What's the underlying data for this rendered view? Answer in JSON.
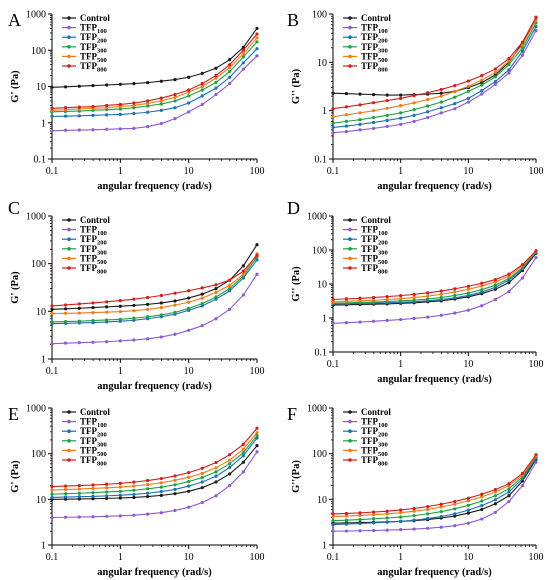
{
  "colors": {
    "Control": "#1a1a1a",
    "TFP100": "#8e5bd0",
    "TFP200": "#1f6fb3",
    "TFP300": "#21a040",
    "TFP500": "#f07b1a",
    "TFP800": "#d11e1e"
  },
  "chart_data": [
    {
      "type": "line",
      "panel": "A",
      "xlabel": "angular frequency (rad/s)",
      "ylabel": "G' (Pa)",
      "xscale": "log",
      "yscale": "log",
      "xlim": [
        0.1,
        100
      ],
      "ylim": [
        0.1,
        1000
      ],
      "xticks": [
        "0.1",
        "1",
        "10",
        "100"
      ],
      "yticks": [
        "0.1",
        "1",
        "10",
        "100",
        "1000"
      ],
      "legend_position": "top-left",
      "x": [
        0.1,
        0.158,
        0.251,
        0.398,
        0.631,
        1,
        1.58,
        2.51,
        3.98,
        6.31,
        10,
        15.8,
        25.1,
        39.8,
        63.1,
        100
      ],
      "series": [
        {
          "name": "Control",
          "sub": "",
          "color_key": "Control",
          "values": [
            9.5,
            9.8,
            10.2,
            10.6,
            11,
            11.5,
            12,
            12.8,
            14,
            15.5,
            18,
            23,
            32,
            55,
            120,
            400
          ]
        },
        {
          "name": "TFP",
          "sub": "100",
          "color_key": "TFP100",
          "values": [
            0.6,
            0.62,
            0.63,
            0.64,
            0.66,
            0.68,
            0.7,
            0.78,
            0.95,
            1.3,
            2,
            3.2,
            6,
            12,
            30,
            70
          ]
        },
        {
          "name": "TFP",
          "sub": "200",
          "color_key": "TFP200",
          "values": [
            1.5,
            1.52,
            1.55,
            1.6,
            1.65,
            1.7,
            1.8,
            1.95,
            2.2,
            2.6,
            3.5,
            5.5,
            9,
            18,
            45,
            110
          ]
        },
        {
          "name": "TFP",
          "sub": "300",
          "color_key": "TFP300",
          "values": [
            2,
            2.05,
            2.1,
            2.2,
            2.3,
            2.4,
            2.6,
            2.9,
            3.3,
            4,
            5.5,
            8,
            13,
            26,
            65,
            170
          ]
        },
        {
          "name": "TFP",
          "sub": "500",
          "color_key": "TFP500",
          "values": [
            2.2,
            2.3,
            2.4,
            2.5,
            2.6,
            2.8,
            3,
            3.4,
            4,
            5,
            7,
            10,
            17,
            33,
            80,
            220
          ]
        },
        {
          "name": "TFP",
          "sub": "800",
          "color_key": "TFP800",
          "values": [
            2.5,
            2.6,
            2.7,
            2.8,
            3,
            3.2,
            3.5,
            4,
            4.8,
            6,
            8,
            12,
            20,
            40,
            100,
            280
          ]
        }
      ]
    },
    {
      "type": "line",
      "panel": "B",
      "xlabel": "angular frequency (rad/s)",
      "ylabel": "G'' (Pa)",
      "xscale": "log",
      "yscale": "log",
      "xlim": [
        0.1,
        100
      ],
      "ylim": [
        0.1,
        100
      ],
      "xticks": [
        "0.1",
        "1",
        "10",
        "100"
      ],
      "yticks": [
        "0.1",
        "1",
        "10",
        "100"
      ],
      "legend_position": "top-left",
      "x": [
        0.1,
        0.158,
        0.251,
        0.398,
        0.631,
        1,
        1.58,
        2.51,
        3.98,
        6.31,
        10,
        15.8,
        25.1,
        39.8,
        63.1,
        100
      ],
      "series": [
        {
          "name": "Control",
          "sub": "",
          "color_key": "Control",
          "values": [
            2.3,
            2.25,
            2.2,
            2.15,
            2.1,
            2.1,
            2.15,
            2.2,
            2.3,
            2.5,
            3,
            3.8,
            5.5,
            10,
            25,
            85
          ]
        },
        {
          "name": "TFP",
          "sub": "100",
          "color_key": "TFP100",
          "values": [
            0.35,
            0.37,
            0.4,
            0.43,
            0.47,
            0.52,
            0.6,
            0.72,
            0.9,
            1.1,
            1.5,
            2.2,
            3.5,
            6,
            14,
            45
          ]
        },
        {
          "name": "TFP",
          "sub": "200",
          "color_key": "TFP200",
          "values": [
            0.45,
            0.48,
            0.52,
            0.57,
            0.63,
            0.7,
            0.8,
            0.95,
            1.15,
            1.4,
            1.8,
            2.6,
            4,
            7,
            17,
            55
          ]
        },
        {
          "name": "TFP",
          "sub": "300",
          "color_key": "TFP300",
          "values": [
            0.55,
            0.6,
            0.65,
            0.72,
            0.8,
            0.9,
            1.05,
            1.25,
            1.5,
            1.9,
            2.5,
            3.4,
            5,
            9,
            20,
            65
          ]
        },
        {
          "name": "TFP",
          "sub": "500",
          "color_key": "TFP500",
          "values": [
            0.75,
            0.82,
            0.9,
            1,
            1.12,
            1.27,
            1.45,
            1.7,
            2,
            2.5,
            3.2,
            4.3,
            6.2,
            10.5,
            23,
            75
          ]
        },
        {
          "name": "TFP",
          "sub": "800",
          "color_key": "TFP800",
          "values": [
            1.1,
            1.2,
            1.32,
            1.46,
            1.62,
            1.8,
            2.05,
            2.35,
            2.75,
            3.3,
            4.1,
            5.3,
            7.3,
            12,
            26,
            85
          ]
        }
      ]
    },
    {
      "type": "line",
      "panel": "C",
      "xlabel": "angular frequency (rad/s)",
      "ylabel": "G' (Pa)",
      "xscale": "log",
      "yscale": "log",
      "xlim": [
        0.1,
        100
      ],
      "ylim": [
        1,
        1000
      ],
      "xticks": [
        "0.1",
        "1",
        "10",
        "100"
      ],
      "yticks": [
        "1",
        "10",
        "100",
        "1000"
      ],
      "legend_position": "top-left",
      "x": [
        0.1,
        0.158,
        0.251,
        0.398,
        0.631,
        1,
        1.58,
        2.51,
        3.98,
        6.31,
        10,
        15.8,
        25.1,
        39.8,
        63.1,
        100
      ],
      "series": [
        {
          "name": "Control",
          "sub": "",
          "color_key": "Control",
          "values": [
            11,
            11.3,
            11.6,
            12,
            12.4,
            12.8,
            13.3,
            14,
            15,
            16.5,
            19,
            23,
            30,
            45,
            90,
            250
          ]
        },
        {
          "name": "TFP",
          "sub": "100",
          "color_key": "TFP100",
          "values": [
            2.1,
            2.15,
            2.2,
            2.25,
            2.3,
            2.4,
            2.5,
            2.65,
            2.9,
            3.3,
            4,
            5,
            7,
            11,
            22,
            60
          ]
        },
        {
          "name": "TFP",
          "sub": "200",
          "color_key": "TFP200",
          "values": [
            5.5,
            5.6,
            5.7,
            5.8,
            6,
            6.2,
            6.5,
            7,
            7.7,
            8.7,
            10.5,
            13,
            18,
            27,
            50,
            120
          ]
        },
        {
          "name": "TFP",
          "sub": "300",
          "color_key": "TFP300",
          "values": [
            6,
            6.1,
            6.2,
            6.4,
            6.6,
            6.8,
            7.2,
            7.7,
            8.4,
            9.5,
            11.5,
            14.5,
            20,
            30,
            55,
            140
          ]
        },
        {
          "name": "TFP",
          "sub": "500",
          "color_key": "TFP500",
          "values": [
            9,
            9.1,
            9.2,
            9.4,
            9.6,
            9.9,
            10.3,
            11,
            12,
            13.5,
            15.5,
            19,
            25,
            35,
            60,
            160
          ]
        },
        {
          "name": "TFP",
          "sub": "800",
          "color_key": "TFP800",
          "values": [
            13,
            13.6,
            14.3,
            15,
            15.8,
            16.8,
            18,
            19.5,
            21.5,
            24,
            27,
            31,
            36,
            45,
            70,
            150
          ]
        }
      ]
    },
    {
      "type": "line",
      "panel": "D",
      "xlabel": "angular frequency (rad/s)",
      "ylabel": "G'' (Pa)",
      "xscale": "log",
      "yscale": "log",
      "xlim": [
        0.1,
        100
      ],
      "ylim": [
        0.1,
        1000
      ],
      "xticks": [
        "0.1",
        "1",
        "10",
        "100"
      ],
      "yticks": [
        "0.1",
        "1",
        "10",
        "100",
        "1000"
      ],
      "legend_position": "top-left",
      "x": [
        0.1,
        0.158,
        0.251,
        0.398,
        0.631,
        1,
        1.58,
        2.51,
        3.98,
        6.31,
        10,
        15.8,
        25.1,
        39.8,
        63.1,
        100
      ],
      "series": [
        {
          "name": "Control",
          "sub": "",
          "color_key": "Control",
          "values": [
            2.4,
            2.45,
            2.5,
            2.55,
            2.6,
            2.7,
            2.8,
            3,
            3.2,
            3.6,
            4.2,
            5.2,
            7,
            11,
            25,
            80
          ]
        },
        {
          "name": "TFP",
          "sub": "100",
          "color_key": "TFP100",
          "values": [
            0.7,
            0.73,
            0.76,
            0.8,
            0.85,
            0.9,
            0.97,
            1.06,
            1.2,
            1.4,
            1.7,
            2.3,
            3.5,
            6,
            15,
            60
          ]
        },
        {
          "name": "TFP",
          "sub": "200",
          "color_key": "TFP200",
          "values": [
            2.6,
            2.65,
            2.7,
            2.75,
            2.8,
            2.9,
            3,
            3.2,
            3.5,
            3.9,
            4.6,
            5.8,
            8,
            13,
            28,
            85
          ]
        },
        {
          "name": "TFP",
          "sub": "300",
          "color_key": "TFP300",
          "values": [
            2.7,
            2.78,
            2.86,
            2.95,
            3.05,
            3.2,
            3.35,
            3.6,
            4,
            4.6,
            5.4,
            6.8,
            9.3,
            14.5,
            30,
            88
          ]
        },
        {
          "name": "TFP",
          "sub": "500",
          "color_key": "TFP500",
          "values": [
            3,
            3.1,
            3.2,
            3.35,
            3.5,
            3.7,
            4,
            4.4,
            5,
            5.8,
            7,
            8.7,
            11.5,
            17,
            34,
            92
          ]
        },
        {
          "name": "TFP",
          "sub": "800",
          "color_key": "TFP800",
          "values": [
            3.5,
            3.65,
            3.8,
            4,
            4.25,
            4.55,
            4.95,
            5.5,
            6.2,
            7.2,
            8.6,
            10.5,
            13.5,
            19.5,
            37,
            95
          ]
        }
      ]
    },
    {
      "type": "line",
      "panel": "E",
      "xlabel": "angular frequency (rad/s)",
      "ylabel": "G' (Pa)",
      "xscale": "log",
      "yscale": "log",
      "xlim": [
        0.1,
        100
      ],
      "ylim": [
        1,
        1000
      ],
      "xticks": [
        "0.1",
        "1",
        "10",
        "100"
      ],
      "yticks": [
        "1",
        "10",
        "100",
        "1000"
      ],
      "legend_position": "top-left",
      "x": [
        0.1,
        0.158,
        0.251,
        0.398,
        0.631,
        1,
        1.58,
        2.51,
        3.98,
        6.31,
        10,
        15.8,
        25.1,
        39.8,
        63.1,
        100
      ],
      "series": [
        {
          "name": "Control",
          "sub": "",
          "color_key": "Control",
          "values": [
            10,
            10.1,
            10.2,
            10.3,
            10.5,
            10.7,
            11,
            11.5,
            12.2,
            13.3,
            15,
            18,
            24,
            36,
            65,
            150
          ]
        },
        {
          "name": "TFP",
          "sub": "100",
          "color_key": "TFP100",
          "values": [
            4,
            4.05,
            4.1,
            4.15,
            4.25,
            4.35,
            4.5,
            4.75,
            5.1,
            5.7,
            6.7,
            8.5,
            12,
            20,
            40,
            110
          ]
        },
        {
          "name": "TFP",
          "sub": "200",
          "color_key": "TFP200",
          "values": [
            11,
            11.2,
            11.4,
            11.6,
            11.9,
            12.3,
            12.8,
            13.6,
            14.8,
            16.5,
            19.5,
            24,
            32,
            50,
            90,
            220
          ]
        },
        {
          "name": "TFP",
          "sub": "300",
          "color_key": "TFP300",
          "values": [
            13,
            13.3,
            13.6,
            14,
            14.5,
            15,
            15.8,
            17,
            18.5,
            20.8,
            24.5,
            30,
            40,
            60,
            105,
            250
          ]
        },
        {
          "name": "TFP",
          "sub": "500",
          "color_key": "TFP500",
          "values": [
            16,
            16.4,
            16.8,
            17.3,
            17.9,
            18.6,
            19.6,
            21,
            23,
            26,
            30.5,
            37,
            49,
            72,
            125,
            290
          ]
        },
        {
          "name": "TFP",
          "sub": "800",
          "color_key": "TFP800",
          "values": [
            19,
            19.5,
            20,
            20.6,
            21.4,
            22.4,
            23.8,
            25.8,
            28.5,
            32.5,
            38.5,
            48,
            64,
            95,
            160,
            360
          ]
        }
      ]
    },
    {
      "type": "line",
      "panel": "F",
      "xlabel": "angular frequency (rad/s)",
      "ylabel": "G''(Pa)",
      "xscale": "log",
      "yscale": "log",
      "xlim": [
        0.1,
        100
      ],
      "ylim": [
        1,
        1000
      ],
      "xticks": [
        "0.1",
        "1",
        "10",
        "100"
      ],
      "yticks": [
        "1",
        "10",
        "100",
        "1000"
      ],
      "legend_position": "top-left",
      "x": [
        0.1,
        0.158,
        0.251,
        0.398,
        0.631,
        1,
        1.58,
        2.51,
        3.98,
        6.31,
        10,
        15.8,
        25.1,
        39.8,
        63.1,
        100
      ],
      "series": [
        {
          "name": "Control",
          "sub": "",
          "color_key": "Control",
          "values": [
            3,
            3.05,
            3.1,
            3.15,
            3.2,
            3.3,
            3.4,
            3.6,
            3.9,
            4.3,
            5,
            6,
            8,
            12,
            25,
            75
          ]
        },
        {
          "name": "TFP",
          "sub": "100",
          "color_key": "TFP100",
          "values": [
            2,
            2.02,
            2.05,
            2.08,
            2.12,
            2.17,
            2.23,
            2.32,
            2.45,
            2.65,
            3,
            3.7,
            5.2,
            9,
            20,
            65
          ]
        },
        {
          "name": "TFP",
          "sub": "200",
          "color_key": "TFP200",
          "values": [
            2.8,
            2.87,
            2.95,
            3.05,
            3.15,
            3.3,
            3.5,
            3.8,
            4.2,
            4.8,
            5.8,
            7.3,
            9.8,
            14.5,
            28,
            80
          ]
        },
        {
          "name": "TFP",
          "sub": "300",
          "color_key": "TFP300",
          "values": [
            3.4,
            3.5,
            3.6,
            3.75,
            3.9,
            4.1,
            4.4,
            4.8,
            5.4,
            6.2,
            7.4,
            9.2,
            12,
            17,
            31,
            85
          ]
        },
        {
          "name": "TFP",
          "sub": "500",
          "color_key": "TFP500",
          "values": [
            4.2,
            4.3,
            4.45,
            4.6,
            4.8,
            5.1,
            5.5,
            6,
            6.8,
            7.8,
            9.3,
            11.3,
            14.5,
            20,
            34,
            90
          ]
        },
        {
          "name": "TFP",
          "sub": "800",
          "color_key": "TFP800",
          "values": [
            4.8,
            4.9,
            5.05,
            5.25,
            5.5,
            5.85,
            6.3,
            6.95,
            7.8,
            9,
            10.6,
            12.9,
            16.3,
            22,
            37,
            95
          ]
        }
      ]
    }
  ]
}
